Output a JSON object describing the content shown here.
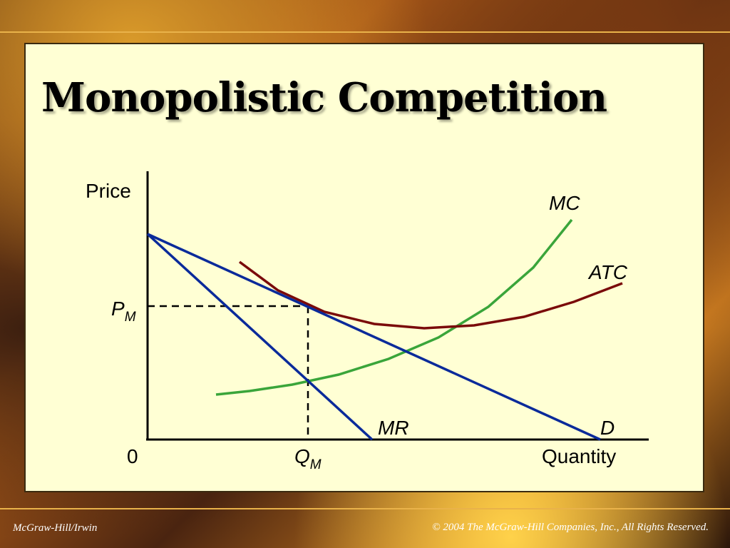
{
  "slide": {
    "title": "Monopolistic Competition",
    "footer_left": "McGraw-Hill/Irwin",
    "footer_right": "© 2004 The McGraw-Hill Companies, Inc., All Rights Reserved."
  },
  "diagram": {
    "y_axis_label": "Price",
    "x_axis_label": "Quantity",
    "origin_label": "0",
    "price_label": "P",
    "price_subscript": "M",
    "quantity_label": "Q",
    "quantity_subscript": "M",
    "curves": {
      "mc": "MC",
      "atc": "ATC",
      "mr": "MR",
      "d": "D"
    },
    "colors": {
      "demand": "#0a2a9a",
      "marginal_revenue": "#0a2a9a",
      "marginal_cost": "#3aa53a",
      "average_total_cost": "#7a0a0a",
      "axes": "#000000"
    }
  }
}
